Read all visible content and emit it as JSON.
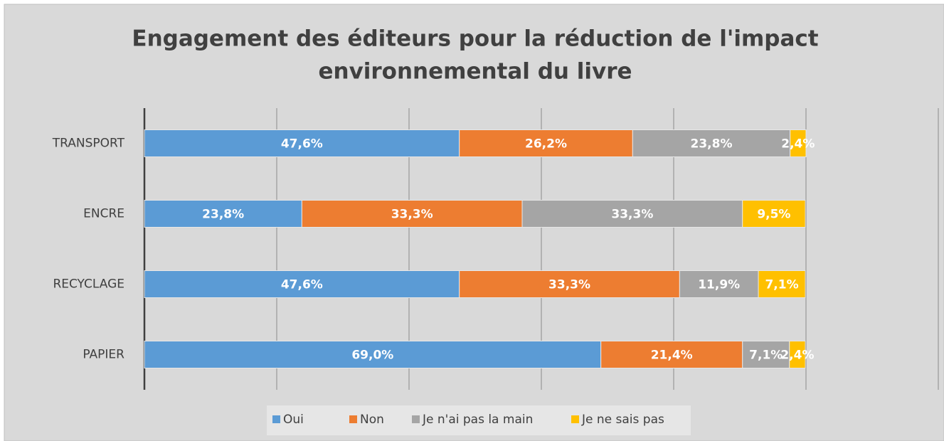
{
  "chart_data": {
    "type": "stacked-bar-horizontal",
    "title": [
      "Engagement des éditeurs pour la réduction de l'impact",
      "environnemental du livre"
    ],
    "categories": [
      "TRANSPORT",
      "ENCRE",
      "RECYCLAGE",
      "PAPIER"
    ],
    "series": [
      {
        "name": "Oui",
        "color": "#5b9bd5",
        "values": [
          47.6,
          23.8,
          47.6,
          69.0
        ],
        "value_labels": [
          "47,6%",
          "23,8%",
          "47,6%",
          "69,0%"
        ]
      },
      {
        "name": "Non",
        "color": "#ed7d31",
        "values": [
          26.2,
          33.3,
          33.3,
          21.4
        ],
        "value_labels": [
          "26,2%",
          "33,3%",
          "33,3%",
          "21,4%"
        ]
      },
      {
        "name": "Je n'ai pas la main",
        "color": "#a5a5a5",
        "values": [
          23.8,
          33.3,
          11.9,
          7.1
        ],
        "value_labels": [
          "23,8%",
          "33,3%",
          "11,9%",
          "7,1%"
        ]
      },
      {
        "name": "Je ne sais pas",
        "color": "#ffc000",
        "values": [
          2.4,
          9.5,
          7.1,
          2.4
        ],
        "value_labels": [
          "2,4%",
          "9,5%",
          "7,1%",
          "2,4%"
        ]
      }
    ],
    "xlim": [
      0,
      120
    ],
    "xticks": [
      0,
      20,
      40,
      60,
      80,
      100,
      120
    ],
    "grid": true,
    "legend": "bottom"
  }
}
